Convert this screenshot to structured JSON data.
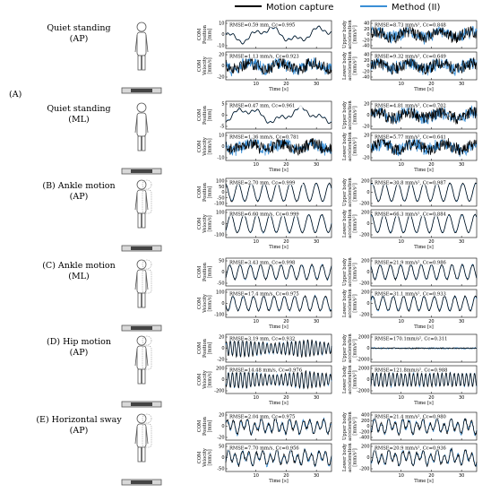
{
  "legend": {
    "motion_capture": {
      "label": "Motion capture",
      "color": "#000000"
    },
    "method_ii": {
      "label": "Method (II)",
      "color": "#3a8fd6"
    }
  },
  "rows": [
    {
      "id": "A-AP",
      "label_letter": "(A)",
      "title_lines": [
        "Quiet standing",
        "(AP)"
      ],
      "left": {
        "top": {
          "ylabel_lines": [
            "COM",
            "Position",
            "[mm]"
          ],
          "ticks": [
            "10",
            "0",
            "-10"
          ],
          "ann": "RMSE=0.59 mm, Cc=0.995",
          "kind": "slow"
        },
        "bottom": {
          "ylabel_lines": [
            "COM",
            "Velocity",
            "[mm/s]"
          ],
          "ticks": [
            "20",
            "0",
            "-20"
          ],
          "ann": "RMSE=1.13 mm/s, Cc=0.923",
          "kind": "noise"
        }
      },
      "right": {
        "top": {
          "ylabel_lines": [
            "Upper body",
            "acceleration",
            "[mm/s²]"
          ],
          "ticks": [
            "40",
            "20",
            "0",
            "-20",
            "-40"
          ],
          "ann": "RMSE=8.73 mm/s², Cc=0.848",
          "kind": "noise"
        },
        "bottom": {
          "ylabel_lines": [
            "Lower body",
            "acceleration",
            "[mm/s²]"
          ],
          "ticks": [
            "40",
            "20",
            "0",
            "-20",
            "-40"
          ],
          "ann": "RMSE=9.32 mm/s², Cc=0.649",
          "kind": "noise"
        }
      },
      "xlabel": "Time [s]",
      "xticks": [
        "10",
        "20",
        "30"
      ]
    },
    {
      "id": "A-ML",
      "label_letter": "",
      "title_lines": [
        "Quiet standing",
        "(ML)"
      ],
      "left": {
        "top": {
          "ylabel_lines": [
            "COM",
            "Position",
            "[mm]"
          ],
          "ticks": [
            "5",
            "0",
            "-5"
          ],
          "ann": "RMSE=0.47 mm, Cc=0.961",
          "kind": "slow"
        },
        "bottom": {
          "ylabel_lines": [
            "COM",
            "Velocity",
            "[mm/s]"
          ],
          "ticks": [
            "10",
            "0",
            "-10"
          ],
          "ann": "RMSE=1.36 mm/s, Cc=0.781",
          "kind": "noise"
        }
      },
      "right": {
        "top": {
          "ylabel_lines": [
            "Upper body",
            "acceleration",
            "[mm/s²]"
          ],
          "ticks": [
            "20",
            "0",
            "-20"
          ],
          "ann": "RMSE=4.81 mm/s², Cc=0.702",
          "kind": "noise"
        },
        "bottom": {
          "ylabel_lines": [
            "Lower body",
            "acceleration",
            "[mm/s²]"
          ],
          "ticks": [
            "20",
            "0",
            "-20"
          ],
          "ann": "RMSE=5.77 mm/s², Cc=0.641",
          "kind": "noise"
        }
      },
      "xlabel": "Time [s]",
      "xticks": [
        "10",
        "20",
        "30"
      ]
    },
    {
      "id": "B",
      "label_letter": "",
      "title_lines": [
        "(B) Ankle motion",
        "(AP)"
      ],
      "left": {
        "top": {
          "ylabel_lines": [
            "COM",
            "Position",
            "[mm]"
          ],
          "ticks": [
            "100",
            "50",
            "0",
            "-50",
            "-100"
          ],
          "ann": "RMSE=2.70 mm, Cc=0.999",
          "kind": "sine8"
        },
        "bottom": {
          "ylabel_lines": [
            "COM",
            "Velocity",
            "[mm/s]"
          ],
          "ticks": [
            "100",
            "0",
            "-100"
          ],
          "ann": "RMSE=6.60 mm/s, Cc=0.999",
          "kind": "sine8"
        }
      },
      "right": {
        "top": {
          "ylabel_lines": [
            "Upper body",
            "acceleration",
            "[mm/s²]"
          ],
          "ticks": [
            "200",
            "0",
            "-200"
          ],
          "ann": "RMSE=30.8 mm/s², Cc=0.987",
          "kind": "sine8"
        },
        "bottom": {
          "ylabel_lines": [
            "Lower body",
            "acceleration",
            "[mm/s²]"
          ],
          "ticks": [
            "200",
            "0",
            "-200"
          ],
          "ann": "RMSE=66.3 mm/s², Cc=0.884",
          "kind": "sine8"
        }
      },
      "xlabel": "Time [s]",
      "xticks": [
        "10",
        "20",
        "30"
      ]
    },
    {
      "id": "C",
      "label_letter": "",
      "title_lines": [
        "(C) Ankle motion",
        "(ML)"
      ],
      "left": {
        "top": {
          "ylabel_lines": [
            "COM",
            "Position",
            "[mm]"
          ],
          "ticks": [
            "50",
            "0",
            "-50"
          ],
          "ann": "RMSE=3.43 mm, Cc=0.998",
          "kind": "sine10"
        },
        "bottom": {
          "ylabel_lines": [
            "COM",
            "Velocity",
            "[mm/s]"
          ],
          "ticks": [
            "100",
            "0",
            "-100"
          ],
          "ann": "RMSE=17.4 mm/s, Cc=0.975",
          "kind": "sine10"
        }
      },
      "right": {
        "top": {
          "ylabel_lines": [
            "Upper body",
            "acceleration",
            "[mm/s²]"
          ],
          "ticks": [
            "200",
            "0",
            "-200"
          ],
          "ann": "RMSE=21.9 mm/s², Cc=0.986",
          "kind": "sine10"
        },
        "bottom": {
          "ylabel_lines": [
            "Lower body",
            "acceleration",
            "[mm/s²]"
          ],
          "ticks": [
            "200",
            "0",
            "-200"
          ],
          "ann": "RMSE=31.1 mm/s², Cc=0.933",
          "kind": "sine10"
        }
      },
      "xlabel": "Time [s]",
      "xticks": [
        "10",
        "20",
        "30"
      ]
    },
    {
      "id": "D",
      "label_letter": "",
      "title_lines": [
        "(D) Hip motion",
        "(AP)"
      ],
      "left": {
        "top": {
          "ylabel_lines": [
            "COM",
            "Position",
            "[mm]"
          ],
          "ticks": [
            "20",
            "0",
            "-20"
          ],
          "ann": "RMSE=3.19 mm, Cc=0.932",
          "kind": "fast"
        },
        "bottom": {
          "ylabel_lines": [
            "COM",
            "Velocity",
            "[mm/s]"
          ],
          "ticks": [
            "200",
            "0",
            "-200"
          ],
          "ann": "RMSE=14.48 mm/s, Cc=0.976",
          "kind": "fast"
        }
      },
      "right": {
        "top": {
          "ylabel_lines": [
            "Upper body",
            "acceleration",
            "[mm/s²]"
          ],
          "ticks": [
            "2000",
            "0",
            "-2000"
          ],
          "ann": "RMSE=170.1mm/s², Cc=0.311",
          "kind": "flat"
        },
        "bottom": {
          "ylabel_lines": [
            "Lower body",
            "acceleration",
            "[mm/s²]"
          ],
          "ticks": [
            "2000",
            "0",
            "-2000"
          ],
          "ann": "RMSE=121.8mm/s², Cc=0.988",
          "kind": "fastbig"
        }
      },
      "xlabel": "Time [s]",
      "xticks": [
        "10",
        "20",
        "30"
      ]
    },
    {
      "id": "E",
      "label_letter": "",
      "title_lines": [
        "(E) Horizontal sway",
        "(AP)"
      ],
      "left": {
        "top": {
          "ylabel_lines": [
            "COM",
            "Position",
            "[mm]"
          ],
          "ticks": [
            "20",
            "0",
            "-20"
          ],
          "ann": "RMSE=2.04 mm, Cc=0.975",
          "kind": "irreg"
        },
        "bottom": {
          "ylabel_lines": [
            "COM",
            "Velocity",
            "[mm/s]"
          ],
          "ticks": [
            "50",
            "0",
            "-50"
          ],
          "ann": "RMSE=7.70 mm/s, Cc=0.956",
          "kind": "irreg"
        }
      },
      "right": {
        "top": {
          "ylabel_lines": [
            "Upper body",
            "acceleration",
            "[mm/s²]"
          ],
          "ticks": [
            "400",
            "200",
            "0",
            "-200",
            "-400"
          ],
          "ann": "RMSE=21.4 mm/s², Cc=0.980",
          "kind": "irreg"
        },
        "bottom": {
          "ylabel_lines": [
            "Lower body",
            "acceleration",
            "[mm/s²]"
          ],
          "ticks": [
            "200",
            "0",
            "-200"
          ],
          "ann": "RMSE=20.9 mm/s², Cc=0.936",
          "kind": "irreg"
        }
      },
      "xlabel": "Time [s]",
      "xticks": [
        "10",
        "20",
        "30"
      ]
    }
  ],
  "chart_data": {
    "type": "line",
    "title": "",
    "series": [
      {
        "name": "Motion capture"
      },
      {
        "name": "Method (II)"
      }
    ],
    "xlabel": "Time [s]",
    "xticks": [
      10,
      20,
      30
    ],
    "xlim": [
      0,
      35
    ]
  }
}
